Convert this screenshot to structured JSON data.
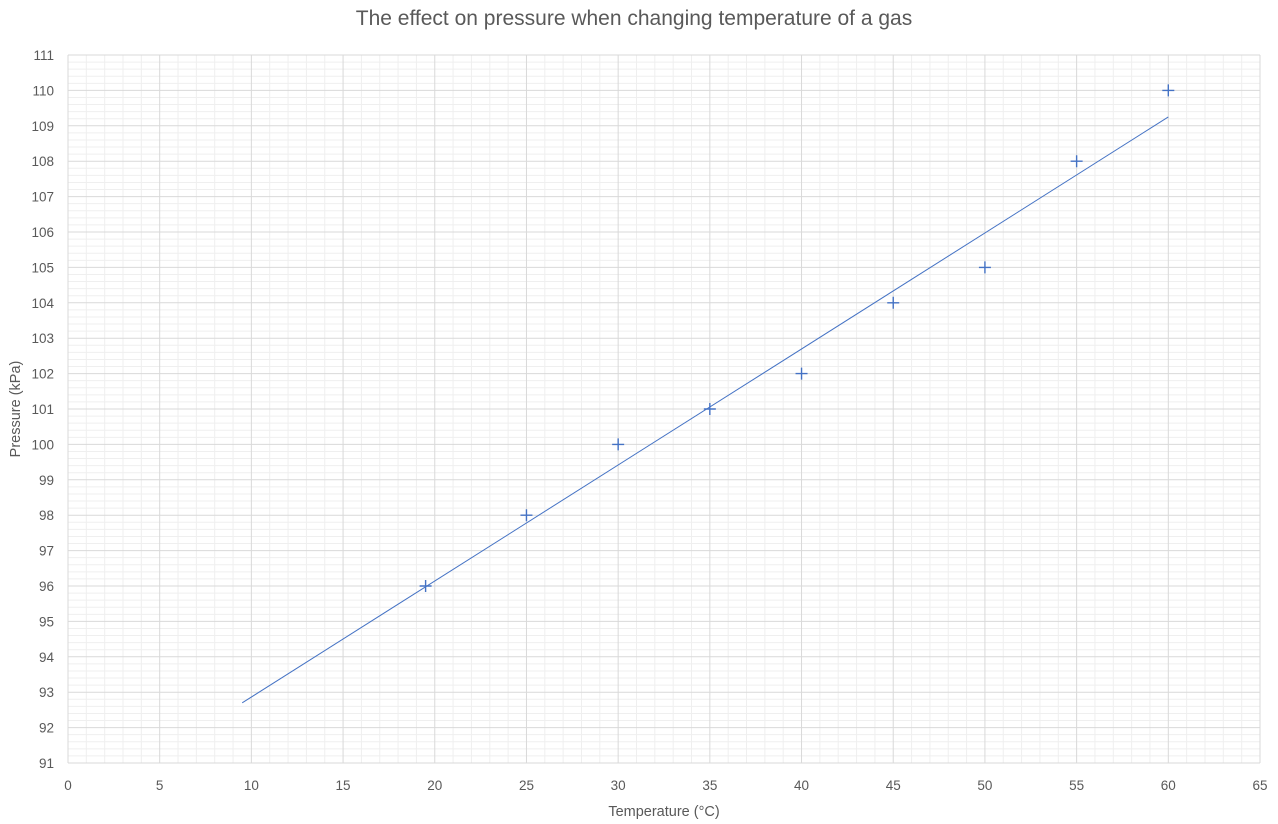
{
  "chart_data": {
    "type": "scatter",
    "title": "The effect on pressure when changing temperature of a gas",
    "xlabel": "Temperature (°C)",
    "ylabel": "Pressure (kPa)",
    "xlim": [
      0,
      65
    ],
    "ylim": [
      91,
      111
    ],
    "x_ticks": [
      "0",
      "5",
      "10",
      "15",
      "20",
      "25",
      "30",
      "35",
      "40",
      "45",
      "50",
      "55",
      "60",
      "65"
    ],
    "y_ticks": [
      "91",
      "92",
      "93",
      "94",
      "95",
      "96",
      "97",
      "98",
      "99",
      "100",
      "101",
      "102",
      "103",
      "104",
      "105",
      "106",
      "107",
      "108",
      "109",
      "110",
      "111"
    ],
    "grid": "major and minor",
    "legend": "none",
    "series": [
      {
        "marker": "plus",
        "color": "#4472C4",
        "x": [
          19.5,
          25,
          30,
          35,
          40,
          45,
          50,
          55,
          60
        ],
        "y": [
          96,
          98,
          100,
          101,
          102,
          104,
          105,
          108,
          110
        ]
      }
    ],
    "trendline": {
      "type": "linear",
      "color": "#4472C4",
      "x": [
        9.5,
        60
      ],
      "y": [
        92.7,
        109.25
      ]
    }
  }
}
